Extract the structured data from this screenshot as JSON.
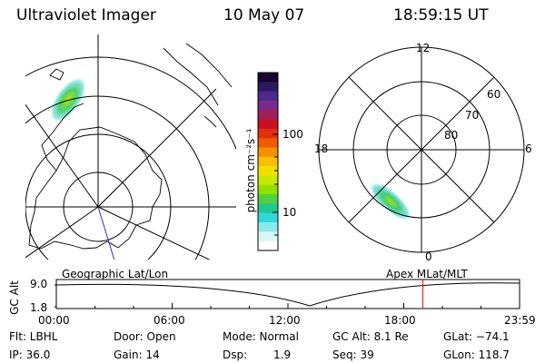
{
  "header": {
    "instrument": "Ultraviolet Imager",
    "date": "10 May 07",
    "time": "18:59:15 UT"
  },
  "colorbar": {
    "label": "photon cm⁻²s⁻¹",
    "ticks": [
      "100",
      "10"
    ],
    "colors": [
      "#1a0033",
      "#2b1a5e",
      "#4a2a8a",
      "#7a2a8a",
      "#a0205a",
      "#c81020",
      "#e03010",
      "#f05a00",
      "#f59000",
      "#f7c000",
      "#f0e000",
      "#c8e800",
      "#90e000",
      "#50d040",
      "#20c890",
      "#30d8d8",
      "#8aeaea",
      "#d8f6f6",
      "#ffffff"
    ]
  },
  "polar_plot": {
    "latitude_labels": [
      "80",
      "70",
      "60"
    ],
    "mlt_labels": [
      "12",
      "18",
      "6",
      "0"
    ]
  },
  "timeline": {
    "ylabel": "GC Alt",
    "yticks": [
      "9.0",
      "1.8"
    ],
    "left_title": "Geographic Lat/Lon",
    "right_title": "Apex MLat/MLT",
    "xticks": [
      "00:00",
      "06:00",
      "12:00",
      "18:00",
      "23:59"
    ],
    "marker_time_hours": 18.99,
    "marker_color": "#ff0000"
  },
  "info": {
    "filter": "Flt: LBHL",
    "door": "Door: Open",
    "mode": "Mode: Normal",
    "gc_alt": "GC Alt: 8.1 Re",
    "glat": "GLat: −74.1",
    "ip": "IP: 36.0",
    "gain": "Gain: 14",
    "dsp_label": "Dsp:",
    "dsp_value": "1.9",
    "seq": "Seq: 39",
    "glon": "GLon: 118.7"
  }
}
